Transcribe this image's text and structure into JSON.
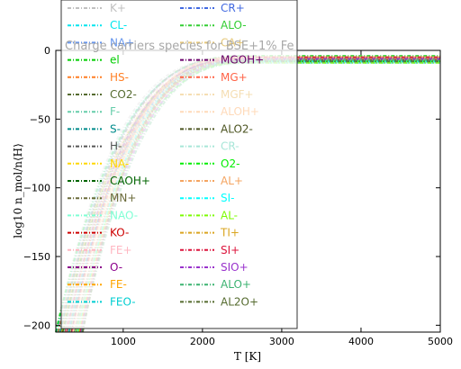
{
  "chart_data": {
    "type": "line",
    "title": "Charge carriers species for BSE+1% Fe",
    "xlabel": "T [K]",
    "ylabel": "log10 n_mol/n⟨H⟩",
    "xlim": [
      150,
      5000
    ],
    "ylim": [
      -205,
      0
    ],
    "x_ticks": [
      1000,
      2000,
      3000,
      4000,
      5000
    ],
    "y_ticks": [
      0,
      -50,
      -100,
      -150,
      -200
    ],
    "x_tick_labels": [
      "1000",
      "2000",
      "3000",
      "4000",
      "5000"
    ],
    "y_tick_labels": [
      "0",
      "−50",
      "−100",
      "−150",
      "−200"
    ],
    "grid": false,
    "legend_placement": "top-left (overlapping plot)",
    "line_style": "dash-dot",
    "series": [
      {
        "name": "K+",
        "color": "#c0c0c0",
        "start": [
          150,
          -205
        ],
        "end": [
          5000,
          -5
        ]
      },
      {
        "name": "CL-",
        "color": "#00e5ee",
        "start": [
          160,
          -205
        ],
        "end": [
          5000,
          -6
        ]
      },
      {
        "name": "NA+",
        "color": "#6495ed",
        "start": [
          170,
          -205
        ],
        "end": [
          5000,
          -5
        ]
      },
      {
        "name": "el",
        "color": "#00cd00",
        "start": [
          150,
          -205
        ],
        "end": [
          5000,
          -4
        ]
      },
      {
        "name": "HS-",
        "color": "#ff7f24",
        "start": [
          180,
          -205
        ],
        "end": [
          5000,
          -8
        ]
      },
      {
        "name": "CO2-",
        "color": "#556b2f",
        "start": [
          190,
          -205
        ],
        "end": [
          5000,
          -7
        ]
      },
      {
        "name": "F-",
        "color": "#66cdaa",
        "start": [
          200,
          -205
        ],
        "end": [
          5000,
          -6
        ]
      },
      {
        "name": "S-",
        "color": "#008b8b",
        "start": [
          210,
          -205
        ],
        "end": [
          5000,
          -6
        ]
      },
      {
        "name": "H-",
        "color": "#555555",
        "start": [
          220,
          -205
        ],
        "end": [
          5000,
          -5
        ]
      },
      {
        "name": "NA-",
        "color": "#ffd700",
        "start": [
          230,
          -205
        ],
        "end": [
          5000,
          -7
        ]
      },
      {
        "name": "CAOH+",
        "color": "#006400",
        "start": [
          240,
          -205
        ],
        "end": [
          5000,
          -6
        ]
      },
      {
        "name": "MN+",
        "color": "#6b6b3a",
        "start": [
          250,
          -205
        ],
        "end": [
          5000,
          -7
        ]
      },
      {
        "name": "NAO-",
        "color": "#7fffd4",
        "start": [
          260,
          -205
        ],
        "end": [
          5000,
          -8
        ]
      },
      {
        "name": "KO-",
        "color": "#cd0000",
        "start": [
          270,
          -205
        ],
        "end": [
          5000,
          -8
        ]
      },
      {
        "name": "FE+",
        "color": "#ffb6c1",
        "start": [
          280,
          -205
        ],
        "end": [
          5000,
          -6
        ]
      },
      {
        "name": "O-",
        "color": "#8b008b",
        "start": [
          290,
          -205
        ],
        "end": [
          5000,
          -7
        ]
      },
      {
        "name": "FE-",
        "color": "#ffa500",
        "start": [
          300,
          -205
        ],
        "end": [
          5000,
          -8
        ]
      },
      {
        "name": "FEO-",
        "color": "#00ced1",
        "start": [
          310,
          -205
        ],
        "end": [
          5000,
          -9
        ]
      },
      {
        "name": "CR+",
        "color": "#4169e1",
        "start": [
          320,
          -205
        ],
        "end": [
          5000,
          -6
        ]
      },
      {
        "name": "ALO-",
        "color": "#32cd32",
        "start": [
          330,
          -205
        ],
        "end": [
          5000,
          -7
        ]
      },
      {
        "name": "CA+",
        "color": "#e6c87a",
        "start": [
          340,
          -205
        ],
        "end": [
          5000,
          -5
        ]
      },
      {
        "name": "MGOH+",
        "color": "#6a006a",
        "start": [
          350,
          -205
        ],
        "end": [
          5000,
          -7
        ]
      },
      {
        "name": "MG+",
        "color": "#ff6347",
        "start": [
          360,
          -205
        ],
        "end": [
          5000,
          -5
        ]
      },
      {
        "name": "MGF+",
        "color": "#f5deb3",
        "start": [
          370,
          -205
        ],
        "end": [
          5000,
          -8
        ]
      },
      {
        "name": "ALOH+",
        "color": "#ffdab9",
        "start": [
          380,
          -205
        ],
        "end": [
          5000,
          -7
        ]
      },
      {
        "name": "ALO2-",
        "color": "#4b5320",
        "start": [
          390,
          -205
        ],
        "end": [
          5000,
          -8
        ]
      },
      {
        "name": "CR-",
        "color": "#a8e6d8",
        "start": [
          400,
          -205
        ],
        "end": [
          5000,
          -9
        ]
      },
      {
        "name": "O2-",
        "color": "#00ee00",
        "start": [
          410,
          -205
        ],
        "end": [
          5000,
          -8
        ]
      },
      {
        "name": "AL+",
        "color": "#f4a460",
        "start": [
          420,
          -205
        ],
        "end": [
          5000,
          -5
        ]
      },
      {
        "name": "SI-",
        "color": "#00ffff",
        "start": [
          430,
          -205
        ],
        "end": [
          5000,
          -8
        ]
      },
      {
        "name": "AL-",
        "color": "#7cfc00",
        "start": [
          440,
          -205
        ],
        "end": [
          5000,
          -9
        ]
      },
      {
        "name": "TI+",
        "color": "#daa520",
        "start": [
          450,
          -205
        ],
        "end": [
          5000,
          -6
        ]
      },
      {
        "name": "SI+",
        "color": "#dc143c",
        "start": [
          460,
          -205
        ],
        "end": [
          5000,
          -5
        ]
      },
      {
        "name": "SIO+",
        "color": "#9932cc",
        "start": [
          470,
          -205
        ],
        "end": [
          5000,
          -6
        ]
      },
      {
        "name": "ALO+",
        "color": "#3cb371",
        "start": [
          480,
          -205
        ],
        "end": [
          5000,
          -7
        ]
      },
      {
        "name": "AL2O+",
        "color": "#556b2f",
        "start": [
          490,
          -205
        ],
        "end": [
          5000,
          -8
        ]
      }
    ]
  }
}
